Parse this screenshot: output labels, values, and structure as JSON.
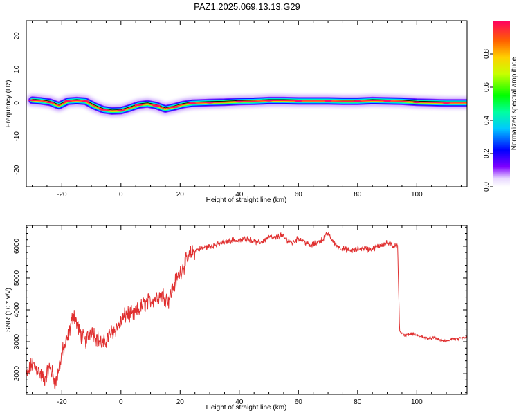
{
  "title": "PAZ1.2025.069.13.13.G29",
  "chart_data": [
    {
      "type": "heatmap",
      "xlabel": "Height of straight line (km)",
      "ylabel": "Frequency (Hz)",
      "xlim": [
        -32,
        117
      ],
      "ylim": [
        -25,
        24.5
      ],
      "x_ticks": [
        -20,
        0,
        20,
        40,
        60,
        80,
        100
      ],
      "y_ticks": [
        20,
        10,
        0,
        -10,
        -20
      ],
      "colorbar": {
        "label": "Normalized spectral amplitude",
        "range": [
          0,
          1
        ],
        "ticks": [
          0.0,
          0.2,
          0.4,
          0.6,
          0.8
        ]
      },
      "ridge_frequency_hz": {
        "x": [
          -30,
          -27,
          -24,
          -21,
          -18,
          -15,
          -12,
          -9,
          -6,
          -3,
          0,
          3,
          6,
          9,
          12,
          15,
          18,
          21,
          24,
          27,
          30,
          35,
          40,
          45,
          50,
          55,
          60,
          65,
          70,
          75,
          80,
          85,
          90,
          95,
          100,
          105,
          110,
          117
        ],
        "y": [
          0.8,
          0.6,
          0.2,
          -0.8,
          0.5,
          0.7,
          0.5,
          -0.9,
          -2.0,
          -2.4,
          -2.3,
          -1.5,
          -0.6,
          -0.3,
          -0.8,
          -1.8,
          -1.2,
          -0.5,
          -0.1,
          0.0,
          0.1,
          0.2,
          0.4,
          0.5,
          0.7,
          0.7,
          0.6,
          0.6,
          0.6,
          0.5,
          0.5,
          0.7,
          0.6,
          0.5,
          0.2,
          0.1,
          0.0,
          0.0
        ]
      }
    },
    {
      "type": "line",
      "xlabel": "Height of straight line (km)",
      "ylabel": "SNR (10 * v/v)",
      "xlim": [
        -32,
        117
      ],
      "ylim": [
        1350,
        6650
      ],
      "x_ticks": [
        -20,
        0,
        20,
        40,
        60,
        80,
        100
      ],
      "y_ticks": [
        2000,
        3000,
        4000,
        5000,
        6000
      ],
      "color": "#e03030",
      "series": [
        {
          "x": [
            -32,
            -30,
            -28,
            -26,
            -24,
            -22,
            -20,
            -18,
            -16,
            -14,
            -12,
            -10,
            -8,
            -6,
            -4,
            -2,
            0,
            2,
            4,
            6,
            8,
            10,
            12,
            14,
            16,
            18,
            20,
            22,
            24,
            26,
            28,
            30,
            32,
            34,
            36,
            38,
            40,
            42,
            44,
            46,
            48,
            50,
            52,
            54,
            56,
            58,
            60,
            62,
            64,
            66,
            68,
            70,
            72,
            74,
            76,
            78,
            80,
            82,
            84,
            86,
            88,
            90,
            92,
            93.5,
            94.2,
            95,
            96,
            98,
            100,
            102,
            104,
            106,
            108,
            110,
            112,
            114,
            117
          ],
          "y": [
            1900,
            2300,
            2100,
            1800,
            2200,
            1700,
            2600,
            3100,
            3900,
            3300,
            3000,
            3400,
            3100,
            2900,
            3200,
            3400,
            3600,
            3900,
            3800,
            4000,
            4200,
            4300,
            4400,
            4500,
            4300,
            4800,
            5200,
            5500,
            5800,
            5900,
            5950,
            6000,
            6050,
            6100,
            6150,
            6200,
            6150,
            6250,
            6200,
            6100,
            6150,
            6300,
            6250,
            6350,
            6200,
            6100,
            6250,
            6150,
            6000,
            6100,
            6200,
            6400,
            6100,
            5950,
            5900,
            5850,
            5900,
            5950,
            5900,
            5950,
            6050,
            6100,
            6000,
            6100,
            3300,
            3250,
            3200,
            3250,
            3200,
            3150,
            3100,
            3120,
            3050,
            3000,
            3100,
            3080,
            3150
          ]
        }
      ]
    }
  ]
}
